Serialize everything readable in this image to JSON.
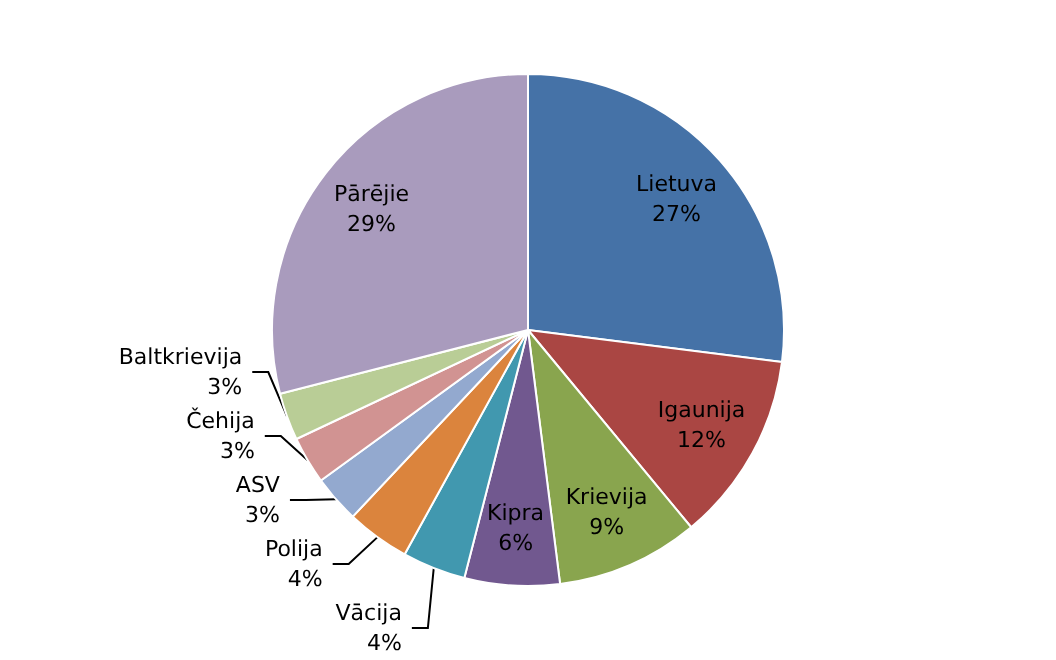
{
  "chart_data": {
    "type": "pie",
    "categories": [
      "Lietuva",
      "Igaunija",
      "Krievija",
      "Kipra",
      "Vācija",
      "Polija",
      "ASV",
      "Čehija",
      "Baltkrievija",
      "Pārējie"
    ],
    "values": [
      27,
      12,
      9,
      6,
      4,
      4,
      3,
      3,
      3,
      29
    ],
    "value_labels": [
      "27%",
      "12%",
      "9%",
      "6%",
      "4%",
      "4%",
      "3%",
      "3%",
      "3%",
      "29%"
    ],
    "colors": [
      "#4572a7",
      "#aa4643",
      "#89a54e",
      "#71588f",
      "#4198af",
      "#db843d",
      "#93a9cf",
      "#d19392",
      "#b9cd96",
      "#a99bbd"
    ],
    "legend": false
  }
}
